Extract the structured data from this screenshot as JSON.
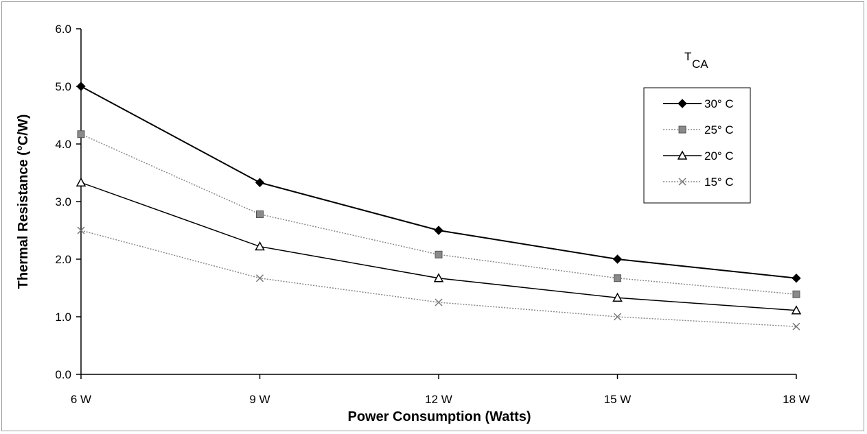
{
  "chart_data": {
    "type": "line",
    "categories": [
      "6 W",
      "9 W",
      "12 W",
      "15 W",
      "18 W"
    ],
    "xlabel": "Power Consumption (Watts)",
    "ylabel": "Thermal Resistance (°C/W)",
    "ylim": [
      0,
      6
    ],
    "yticks": [
      "0.0",
      "1.0",
      "2.0",
      "3.0",
      "4.0",
      "5.0",
      "6.0"
    ],
    "ytick_values": [
      0,
      1,
      2,
      3,
      4,
      5,
      6
    ],
    "grid": false,
    "legend": {
      "placement": "right",
      "title_main": "T",
      "title_sub": "CA"
    },
    "series": [
      {
        "name": "30° C",
        "values": [
          5.0,
          3.33,
          2.5,
          2.0,
          1.67
        ],
        "color": "#000000",
        "marker": "diamond",
        "dash": ""
      },
      {
        "name": "25° C",
        "values": [
          4.17,
          2.78,
          2.08,
          1.67,
          1.39
        ],
        "color": "#888888",
        "marker": "square",
        "dash": "2,2"
      },
      {
        "name": "20° C",
        "values": [
          3.33,
          2.22,
          1.67,
          1.33,
          1.11
        ],
        "color": "#000000",
        "marker": "triangle",
        "dash": ""
      },
      {
        "name": "15° C",
        "values": [
          2.5,
          1.67,
          1.25,
          1.0,
          0.83
        ],
        "color": "#888888",
        "marker": "x",
        "dash": "2,2"
      }
    ]
  }
}
